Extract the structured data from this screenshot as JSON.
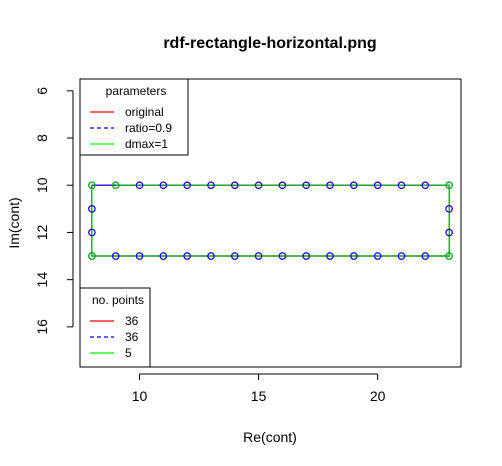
{
  "chart_data": {
    "type": "line",
    "title": "rdf-rectangle-horizontal.png",
    "xlabel": "Re(cont)",
    "ylabel": "Im(cont)",
    "xlim": [
      7.5,
      23.5
    ],
    "ylim": [
      17.7,
      5.5
    ],
    "y_reversed": true,
    "xticks": [
      "10",
      "15",
      "20"
    ],
    "yticks": [
      "6",
      "8",
      "10",
      "12",
      "14",
      "16"
    ],
    "xtick_values": [
      10,
      15,
      20
    ],
    "ytick_values": [
      6,
      8,
      10,
      12,
      14,
      16
    ],
    "grid": false,
    "series": [
      {
        "name": "original",
        "color": "#ff0000",
        "x": [
          8,
          8,
          8,
          8,
          9,
          10,
          11,
          12,
          13,
          14,
          15,
          16,
          17,
          18,
          19,
          20,
          21,
          22,
          23,
          23,
          23,
          23,
          22,
          21,
          20,
          19,
          18,
          17,
          16,
          15,
          14,
          13,
          12,
          11,
          10,
          9,
          8
        ],
        "y": [
          10,
          11,
          12,
          13,
          13,
          13,
          13,
          13,
          13,
          13,
          13,
          13,
          13,
          13,
          13,
          13,
          13,
          13,
          13,
          12,
          11,
          10,
          10,
          10,
          10,
          10,
          10,
          10,
          10,
          10,
          10,
          10,
          10,
          10,
          10,
          10,
          10
        ]
      },
      {
        "name": "ratio=0.9",
        "color": "#0000ff",
        "x": [
          8,
          8,
          8,
          8,
          9,
          10,
          11,
          12,
          13,
          14,
          15,
          16,
          17,
          18,
          19,
          20,
          21,
          22,
          23,
          23,
          23,
          23,
          22,
          21,
          20,
          19,
          18,
          17,
          16,
          15,
          14,
          13,
          12,
          11,
          10,
          9,
          8
        ],
        "y": [
          10,
          11,
          12,
          13,
          13,
          13,
          13,
          13,
          13,
          13,
          13,
          13,
          13,
          13,
          13,
          13,
          13,
          13,
          13,
          12,
          11,
          10,
          10,
          10,
          10,
          10,
          10,
          10,
          10,
          10,
          10,
          10,
          10,
          10,
          10,
          10,
          10
        ]
      },
      {
        "name": "dmax=1",
        "color": "#00cc00",
        "x": [
          8,
          8,
          23,
          23,
          9
        ],
        "y": [
          10,
          13,
          13,
          10,
          10
        ]
      }
    ],
    "legends": [
      {
        "title": "parameters",
        "position": "top-left",
        "entries": [
          {
            "label": "original",
            "color": "#ff0000",
            "dash": false
          },
          {
            "label": "ratio=0.9",
            "color": "#0000ff",
            "dash": true
          },
          {
            "label": "dmax=1",
            "color": "#00ff00",
            "dash": false
          }
        ]
      },
      {
        "title": "no. points",
        "position": "bottom-left",
        "entries": [
          {
            "label": "36",
            "color": "#ff0000",
            "dash": false
          },
          {
            "label": "36",
            "color": "#0000ff",
            "dash": true
          },
          {
            "label": "5",
            "color": "#00ff00",
            "dash": false
          }
        ]
      }
    ]
  }
}
